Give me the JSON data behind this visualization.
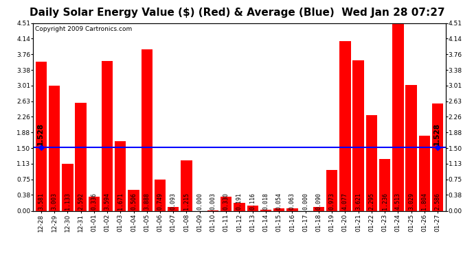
{
  "title": "Daily Solar Energy Value ($) (Red) & Average (Blue)  Wed Jan 28 07:27",
  "copyright": "Copyright 2009 Cartronics.com",
  "categories": [
    "12-28",
    "12-29",
    "12-30",
    "12-31",
    "01-01",
    "01-02",
    "01-03",
    "01-04",
    "01-05",
    "01-06",
    "01-07",
    "01-08",
    "01-09",
    "01-10",
    "01-11",
    "01-12",
    "01-13",
    "01-14",
    "01-15",
    "01-16",
    "01-17",
    "01-18",
    "01-19",
    "01-20",
    "01-21",
    "01-22",
    "01-23",
    "01-24",
    "01-25",
    "01-26",
    "01-27"
  ],
  "values": [
    3.581,
    3.003,
    1.133,
    2.592,
    0.336,
    3.594,
    1.671,
    0.506,
    3.888,
    0.749,
    0.093,
    1.215,
    0.0,
    0.003,
    0.33,
    0.191,
    0.116,
    0.018,
    0.054,
    0.063,
    0.0,
    0.09,
    0.973,
    4.077,
    3.621,
    2.295,
    1.236,
    4.513,
    3.029,
    1.804,
    2.586
  ],
  "average": 1.528,
  "bar_color": "#ff0000",
  "avg_line_color": "#0000ff",
  "background_color": "#ffffff",
  "plot_bg_color": "#ffffff",
  "grid_color": "#c8c8c8",
  "ylim": [
    0.0,
    4.51
  ],
  "yticks": [
    0.0,
    0.38,
    0.75,
    1.13,
    1.5,
    1.88,
    2.26,
    2.63,
    3.01,
    3.38,
    3.76,
    4.14,
    4.51
  ],
  "title_fontsize": 11,
  "copyright_fontsize": 6.5,
  "tick_fontsize": 6.5,
  "bar_label_fontsize": 6,
  "avg_label": "1.528",
  "avg_label_fontsize": 7.5
}
